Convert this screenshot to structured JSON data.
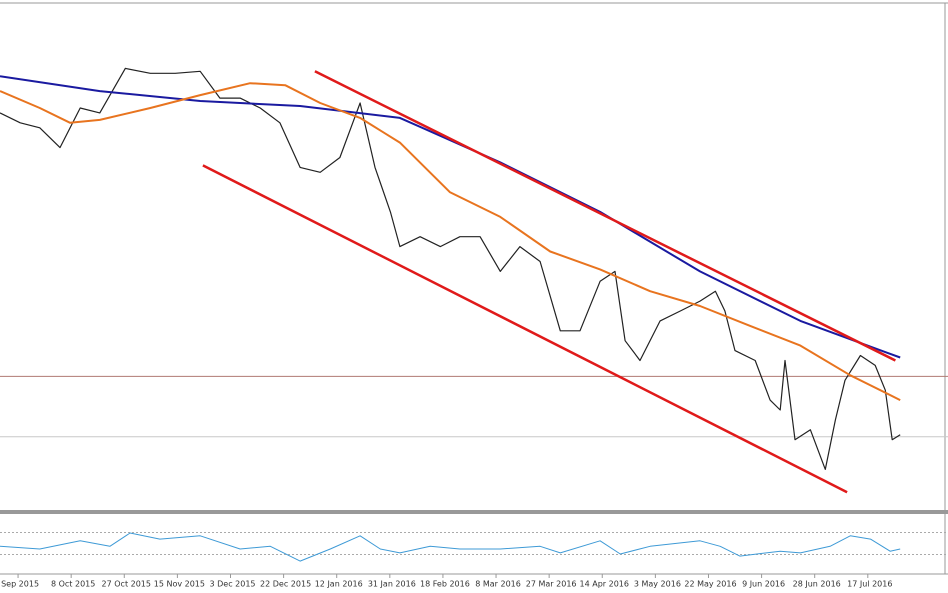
{
  "chart_data": [
    {
      "type": "line",
      "xlim": [
        -0.34,
        17.51
      ],
      "ylim": [
        0,
        102
      ],
      "xticks": [
        {
          "value": 0,
          "label": "Sep 2015"
        },
        {
          "value": 1,
          "label": "8 Oct 2015"
        },
        {
          "value": 2,
          "label": "27 Oct 2015"
        },
        {
          "value": 3,
          "label": "15 Nov 2015"
        },
        {
          "value": 4,
          "label": "3 Dec 2015"
        },
        {
          "value": 5,
          "label": "22 Dec 2015"
        },
        {
          "value": 6,
          "label": "12 Jan 2016"
        },
        {
          "value": 7,
          "label": "31 Jan 2016"
        },
        {
          "value": 8,
          "label": "18 Feb 2016"
        },
        {
          "value": 9,
          "label": "8 Mar 2016"
        },
        {
          "value": 10,
          "label": "27 Mar 2016"
        },
        {
          "value": 11,
          "label": "14 Apr 2016"
        },
        {
          "value": 12,
          "label": "3 May 2016"
        },
        {
          "value": 13,
          "label": "22 May 2016"
        },
        {
          "value": 14,
          "label": "9 Jun 2016"
        },
        {
          "value": 15,
          "label": "28 Jun 2016"
        },
        {
          "value": 16,
          "label": "17 Jul 2016"
        }
      ],
      "hlines": [
        {
          "value": 26.8,
          "color": "#b07a72"
        },
        {
          "value": 14.6,
          "color": "#c8c8c8"
        }
      ],
      "series": [
        {
          "color": "#222222",
          "width": 1.2,
          "x": [
            -0.34,
            0.04,
            0.41,
            0.79,
            1.17,
            1.54,
            2.02,
            2.49,
            2.96,
            3.43,
            3.8,
            4.18,
            4.56,
            4.93,
            5.31,
            5.69,
            6.06,
            6.44,
            6.72,
            7.01,
            7.19,
            7.57,
            7.95,
            8.32,
            8.7,
            9.08,
            9.45,
            9.83,
            10.21,
            10.58,
            10.96,
            11.24,
            11.43,
            11.71,
            12.09,
            12.47,
            12.84,
            13.13,
            13.31,
            13.5,
            13.88,
            14.16,
            14.35,
            14.44,
            14.63,
            14.92,
            15.2,
            15.39,
            15.57,
            15.86,
            16.14,
            16.33,
            16.46,
            16.61
          ],
          "values": [
            80,
            78,
            77,
            73,
            81,
            80,
            89,
            88,
            88,
            88.4,
            83,
            83,
            81,
            78,
            69,
            68,
            71,
            82,
            69,
            60,
            53,
            55,
            53,
            55,
            55,
            48,
            53,
            50,
            36,
            36,
            46,
            48,
            34,
            30,
            38,
            40,
            42,
            44,
            40,
            32,
            30,
            22,
            20,
            30,
            14,
            16,
            8,
            18,
            26,
            31,
            29,
            24,
            14,
            15
          ]
        },
        {
          "color": "#1a1aa0",
          "width": 2,
          "x": [
            -0.34,
            1.54,
            3.43,
            5.31,
            7.19,
            9.08,
            10.96,
            12.84,
            14.73,
            16.61
          ],
          "values": [
            87.4,
            84.4,
            82.4,
            81.4,
            79,
            70,
            60,
            48,
            38,
            30.6
          ]
        },
        {
          "color": "#e8741f",
          "width": 2,
          "x": [
            -0.34,
            0.41,
            0.98,
            1.54,
            2.49,
            3.43,
            4.37,
            5.03,
            5.69,
            6.44,
            7.19,
            8.13,
            9.08,
            10.02,
            10.96,
            11.9,
            12.84,
            13.78,
            14.73,
            15.67,
            16.61
          ],
          "values": [
            84.4,
            81,
            78,
            78.6,
            81,
            83.6,
            86,
            85.6,
            82,
            79,
            74,
            64,
            59,
            52,
            48.4,
            44,
            41,
            37,
            33,
            27,
            22
          ]
        },
        {
          "color": "#e01a1a",
          "width": 2.5,
          "x": [
            5.59,
            16.52
          ],
          "values": [
            88.4,
            30
          ]
        },
        {
          "color": "#e01a1a",
          "width": 2.5,
          "x": [
            3.48,
            15.61
          ],
          "values": [
            69.4,
            3.4
          ]
        }
      ]
    },
    {
      "type": "line",
      "xlim": [
        -0.34,
        17.51
      ],
      "ylim": [
        0,
        100
      ],
      "levels": [
        70,
        30
      ],
      "series": [
        {
          "color": "#3e9ad6",
          "width": 1,
          "x": [
            -0.34,
            0.41,
            1.17,
            1.73,
            2.11,
            2.67,
            3.43,
            4.18,
            4.75,
            5.31,
            5.88,
            6.44,
            6.82,
            7.19,
            7.76,
            8.32,
            9.08,
            9.83,
            10.21,
            10.96,
            11.34,
            11.9,
            12.84,
            13.22,
            13.59,
            14.35,
            14.73,
            15.29,
            15.67,
            16.05,
            16.42,
            16.61
          ],
          "values": [
            45,
            40,
            55,
            45,
            69,
            58,
            64,
            40,
            45,
            18,
            40,
            64,
            40,
            33,
            45,
            40,
            40,
            45,
            33,
            55,
            31,
            45,
            55,
            45,
            27,
            36,
            33,
            45,
            64,
            58,
            36,
            40
          ]
        }
      ]
    }
  ]
}
